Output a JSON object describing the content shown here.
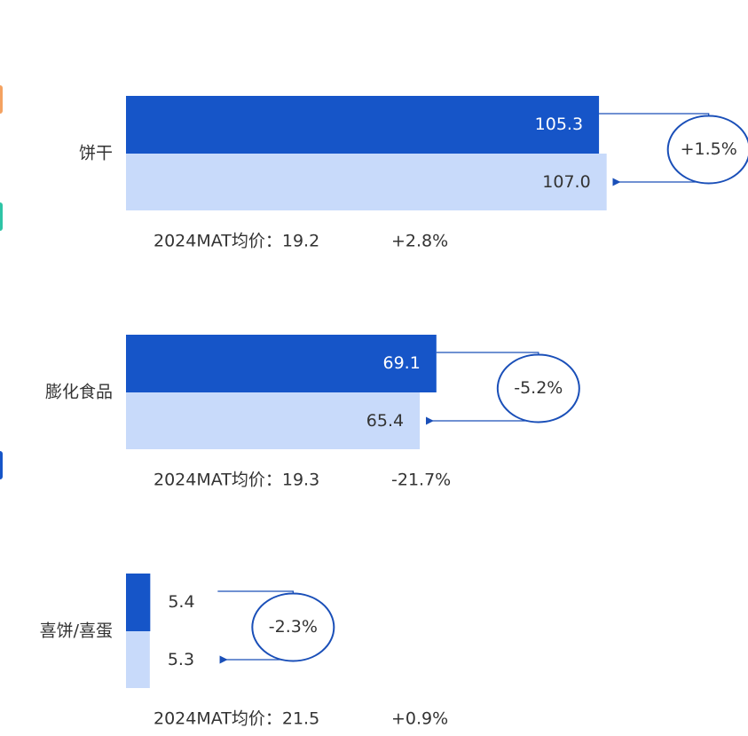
{
  "chart_data": {
    "type": "bar",
    "orientation": "horizontal",
    "categories": [
      "饼干",
      "膨化食品",
      "喜饼/喜蛋"
    ],
    "series": [
      {
        "color": "#1655c8",
        "values": [
          105.3,
          69.1,
          5.4
        ],
        "value_labels": [
          "105.3",
          "69.1",
          "5.4"
        ]
      },
      {
        "color": "#c8dafa",
        "values": [
          107.0,
          65.4,
          5.3
        ],
        "value_labels": [
          "107.0",
          "65.4",
          "5.3"
        ]
      }
    ],
    "changes": [
      "+1.5%",
      "-5.2%",
      "-2.3%"
    ],
    "annotations": [
      "2024MAT均价：19.2",
      "2024MAT均价：19.3",
      "2024MAT均价：21.5"
    ],
    "annotation_changes": [
      "+2.8%",
      "-21.7%",
      "+0.9%"
    ],
    "xlim": [
      0,
      120
    ]
  }
}
